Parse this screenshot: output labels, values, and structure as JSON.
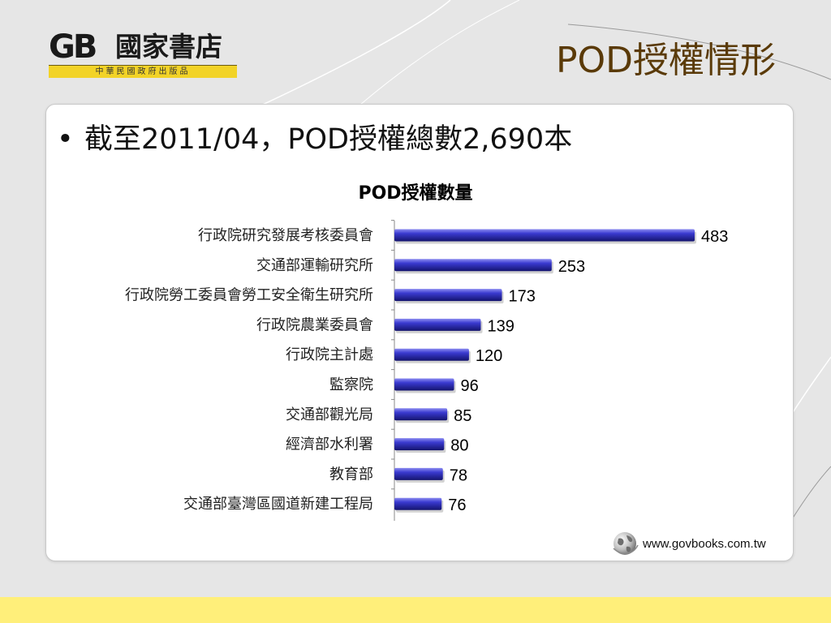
{
  "logo": {
    "mark": "GB",
    "name": "國家書店",
    "band_text": "中華民國政府出版品"
  },
  "slide": {
    "title": "POD授權情形",
    "bullet": "截至2011/04，POD授權總數2,690本"
  },
  "footer": {
    "url": "www.govbooks.com.tw"
  },
  "colors": {
    "bar": "#2a2aa8",
    "band": "#ffef7a",
    "title": "#5a3a08"
  },
  "chart_data": {
    "type": "bar",
    "orientation": "horizontal",
    "title": "POD授權數量",
    "xlabel": "",
    "ylabel": "",
    "categories": [
      "行政院研究發展考核委員會",
      "交通部運輸研究所",
      "行政院勞工委員會勞工安全衛生研究所",
      "行政院農業委員會",
      "行政院主計處",
      "監察院",
      "交通部觀光局",
      "經濟部水利署",
      "教育部",
      "交通部臺灣區國道新建工程局"
    ],
    "values": [
      483,
      253,
      173,
      139,
      120,
      96,
      85,
      80,
      78,
      76
    ],
    "data_labels": [
      "483",
      "253",
      "173",
      "139",
      "120",
      "96",
      "85",
      "80",
      "78",
      "76"
    ],
    "xlim": [
      0,
      483
    ],
    "grid": false,
    "legend": "none"
  }
}
